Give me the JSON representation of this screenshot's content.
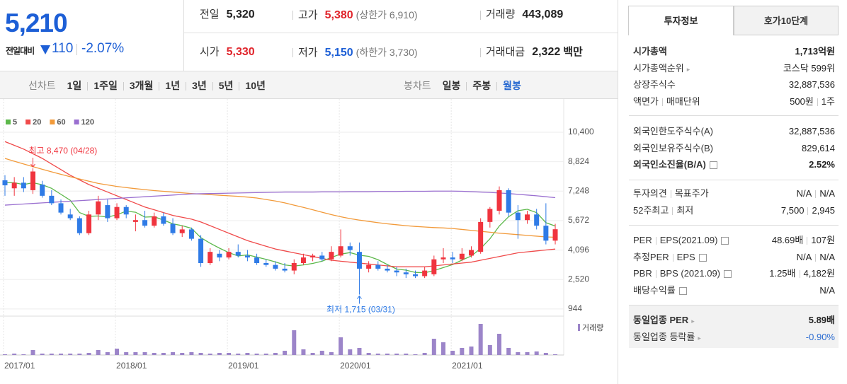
{
  "summary": {
    "price": "5,210",
    "change_label": "전일대비",
    "change": "110",
    "change_rate": "-2.07%"
  },
  "quote": {
    "rows": [
      [
        {
          "label": "전일",
          "value": "5,320"
        },
        {
          "label": "고가",
          "value": "5,380",
          "note": "(상한가 6,910)"
        },
        {
          "label": "거래량",
          "value": "443,089"
        }
      ],
      [
        {
          "label": "시가",
          "value": "5,330"
        },
        {
          "label": "저가",
          "value": "5,150",
          "note": "(하한가 3,730)"
        },
        {
          "label": "거래대금",
          "value": "2,322",
          "unit": "백만"
        }
      ]
    ]
  },
  "toolbar": {
    "line_chart": "선차트",
    "line_periods": [
      "1일",
      "1주일",
      "3개월",
      "1년",
      "3년",
      "5년",
      "10년"
    ],
    "candle_chart": "봉차트",
    "candle_periods": [
      "일봉",
      "주봉",
      "월봉"
    ]
  },
  "chart_data": {
    "type": "candlestick",
    "categories": [
      "2017/01",
      null,
      null,
      null,
      null,
      null,
      null,
      null,
      null,
      null,
      null,
      null,
      "2018/01",
      null,
      null,
      null,
      null,
      null,
      null,
      null,
      null,
      null,
      null,
      null,
      "2019/01",
      null,
      null,
      null,
      null,
      null,
      null,
      null,
      null,
      null,
      null,
      null,
      "2020/01",
      null,
      null,
      null,
      null,
      null,
      null,
      null,
      null,
      null,
      null,
      null,
      "2021/01",
      null,
      null,
      null,
      null,
      null,
      null,
      null,
      null,
      null,
      null,
      null
    ],
    "open": [
      7830,
      7400,
      7700,
      7300,
      7600,
      7000,
      6600,
      6000,
      5800,
      5000,
      6000,
      6500,
      5800,
      6400,
      5600,
      5700,
      5400,
      5900,
      5500,
      5000,
      5200,
      4700,
      3400,
      3900,
      3700,
      4000,
      3800,
      3700,
      3400,
      3300,
      3100,
      3000,
      3400,
      3700,
      3800,
      3600,
      3800,
      4300,
      4000,
      3100,
      3300,
      3100,
      3000,
      2900,
      2800,
      2700,
      2800,
      3600,
      3700,
      3600,
      3800,
      4000,
      5600,
      6200,
      7300,
      6100,
      5700,
      6000,
      5400,
      4600
    ],
    "high": [
      8100,
      8000,
      8000,
      8470,
      7800,
      7300,
      6800,
      6300,
      5900,
      6200,
      7000,
      6800,
      6600,
      6500,
      6000,
      6200,
      6100,
      6100,
      5800,
      5400,
      5300,
      4900,
      4200,
      4100,
      4200,
      4400,
      4100,
      3900,
      3600,
      3500,
      3400,
      3600,
      3900,
      3900,
      4000,
      4300,
      5200,
      4500,
      4500,
      3500,
      3500,
      3300,
      3200,
      3100,
      3000,
      3200,
      3800,
      4200,
      4000,
      4200,
      4300,
      5800,
      6400,
      7500,
      7400,
      6500,
      6200,
      6300,
      6600,
      5500
    ],
    "low": [
      7000,
      7000,
      7200,
      7100,
      6900,
      6500,
      6000,
      5700,
      4900,
      4900,
      5700,
      5600,
      5700,
      5800,
      5100,
      5300,
      5300,
      5400,
      4900,
      4800,
      4600,
      3200,
      3300,
      3500,
      3600,
      3700,
      3500,
      3300,
      3200,
      3000,
      2900,
      2800,
      3300,
      3500,
      3500,
      3500,
      3700,
      3800,
      1715,
      2900,
      3000,
      2900,
      2700,
      2600,
      2600,
      2600,
      2700,
      3400,
      3400,
      3500,
      3700,
      3900,
      5300,
      6000,
      5900,
      4700,
      5500,
      5200,
      4400,
      4400
    ],
    "close": [
      7560,
      7700,
      7400,
      8300,
      7000,
      6600,
      6100,
      5800,
      5000,
      6000,
      6700,
      5800,
      6400,
      6000,
      5700,
      5400,
      5900,
      5500,
      5000,
      5200,
      4700,
      3400,
      4000,
      3700,
      4000,
      3800,
      3700,
      3400,
      3300,
      3100,
      3000,
      3400,
      3700,
      3800,
      3600,
      4000,
      4300,
      4100,
      3100,
      3300,
      3100,
      3000,
      2900,
      2800,
      2700,
      3000,
      3600,
      3700,
      3600,
      3900,
      4100,
      5600,
      6300,
      7300,
      6100,
      5700,
      6000,
      5400,
      4600,
      5210
    ],
    "up_color": "#f0343e",
    "down_color": "#2f7be6",
    "series": [
      {
        "name": "5",
        "color": "#5cb84a",
        "values": [
          7700,
          7700,
          7600,
          7700,
          7590,
          7400,
          7080,
          6760,
          6100,
          5900,
          5920,
          5860,
          5980,
          6180,
          6120,
          5860,
          5880,
          5700,
          5500,
          5400,
          5260,
          4760,
          4460,
          4200,
          3960,
          3780,
          3840,
          3720,
          3600,
          3460,
          3300,
          3240,
          3300,
          3380,
          3500,
          3700,
          3880,
          3960,
          3820,
          3760,
          3580,
          3320,
          3080,
          3020,
          2900,
          2880,
          3000,
          3160,
          3320,
          3560,
          3780,
          4180,
          4700,
          5380,
          5880,
          6200,
          6280,
          6100,
          5560,
          5380
        ]
      },
      {
        "name": "20",
        "color": "#f04a4a",
        "values": [
          9900,
          9700,
          9500,
          9250,
          9000,
          8700,
          8400,
          8100,
          7850,
          7600,
          7400,
          7200,
          7000,
          6800,
          6600,
          6400,
          6250,
          6100,
          5950,
          5850,
          5750,
          5600,
          5400,
          5200,
          5000,
          4800,
          4600,
          4450,
          4300,
          4150,
          4050,
          3950,
          3850,
          3750,
          3650,
          3550,
          3500,
          3450,
          3400,
          3350,
          3300,
          3250,
          3200,
          3200,
          3200,
          3200,
          3250,
          3300,
          3350,
          3400,
          3450,
          3550,
          3650,
          3750,
          3850,
          3950,
          4000,
          4050,
          4100,
          4150
        ]
      },
      {
        "name": "60",
        "color": "#f29a3a",
        "values": [
          9000,
          8850,
          8700,
          8560,
          8420,
          8280,
          8150,
          8020,
          7900,
          7780,
          7660,
          7580,
          7500,
          7440,
          7380,
          7330,
          7280,
          7240,
          7200,
          7160,
          7120,
          7090,
          7060,
          7030,
          7000,
          6970,
          6930,
          6880,
          6800,
          6720,
          6620,
          6500,
          6380,
          6250,
          6120,
          5990,
          5880,
          5780,
          5700,
          5630,
          5560,
          5500,
          5450,
          5400,
          5360,
          5330,
          5300,
          5280,
          5250,
          5200,
          5150,
          5100,
          5050,
          5000,
          4960,
          4920,
          4880,
          4840,
          4800,
          4780
        ]
      },
      {
        "name": "120",
        "color": "#9a6fd0",
        "values": [
          6500,
          6530,
          6560,
          6590,
          6620,
          6650,
          6680,
          6710,
          6740,
          6770,
          6800,
          6830,
          6860,
          6890,
          6920,
          6950,
          6980,
          7010,
          7040,
          7070,
          7100,
          7110,
          7120,
          7130,
          7140,
          7150,
          7160,
          7170,
          7180,
          7190,
          7200,
          7200,
          7200,
          7200,
          7210,
          7210,
          7210,
          7220,
          7220,
          7220,
          7230,
          7230,
          7230,
          7240,
          7240,
          7240,
          7250,
          7250,
          7250,
          7240,
          7220,
          7200,
          7180,
          7150,
          7120,
          7080,
          7040,
          7000,
          6950,
          6900
        ]
      }
    ],
    "ylim": [
      600,
      11800
    ],
    "yticks": [
      {
        "value": 10400,
        "label": "10,400"
      },
      {
        "value": 8824,
        "label": "8,824"
      },
      {
        "value": 7248,
        "label": "7,248"
      },
      {
        "value": 5672,
        "label": "5,672"
      },
      {
        "value": 4096,
        "label": "4,096"
      },
      {
        "value": 2520,
        "label": "2,520"
      },
      944
    ],
    "high_label": "최고 8,470 (04/28)",
    "low_label": "최저 1,715 (03/31)",
    "volume": {
      "name": "거래량",
      "color": "#9c85c9",
      "ylim": [
        0,
        46000000
      ],
      "values": [
        1000000,
        2000000,
        1000000,
        7000000,
        2000000,
        2000000,
        2000000,
        2000000,
        2000000,
        3000000,
        7000000,
        4000000,
        9000000,
        4000000,
        4000000,
        4000000,
        3000000,
        3000000,
        4000000,
        3000000,
        4000000,
        3000000,
        2000000,
        3000000,
        3000000,
        2000000,
        3000000,
        2000000,
        2000000,
        3000000,
        6000000,
        35000000,
        8000000,
        3000000,
        6000000,
        4000000,
        25000000,
        8000000,
        10000000,
        3000000,
        2000000,
        2000000,
        2000000,
        2000000,
        1000000,
        3000000,
        23000000,
        18000000,
        6000000,
        10000000,
        12000000,
        44000000,
        14000000,
        30000000,
        10000000,
        4000000,
        4000000,
        5000000,
        3000000,
        1000000
      ]
    },
    "grid": true
  },
  "info": {
    "tabs": [
      "투자정보",
      "호가10단계"
    ],
    "groups": [
      [
        {
          "label": [
            "시가총액"
          ],
          "value": [
            "1,713억원"
          ]
        },
        {
          "label": [
            "시가총액순위"
          ],
          "value": [
            "코스닥 599위"
          ]
        },
        {
          "label": [
            "상장주식수"
          ],
          "value": [
            "32,887,536"
          ]
        },
        {
          "label": [
            "액면가",
            "매매단위"
          ],
          "value": [
            "500원",
            "1주"
          ]
        }
      ],
      [
        {
          "label": [
            "외국인한도주식수(A)"
          ],
          "value": [
            "32,887,536"
          ]
        },
        {
          "label": [
            "외국인보유주식수(B)"
          ],
          "value": [
            "829,614"
          ]
        },
        {
          "label": [
            "외국인소진율(B/A)"
          ],
          "value": [
            "2.52%"
          ]
        }
      ],
      [
        {
          "label": [
            "투자의견",
            "목표주가"
          ],
          "value": [
            "N/A",
            "N/A"
          ]
        },
        {
          "label": [
            "52주최고",
            "최저"
          ],
          "value": [
            "7,500",
            "2,945"
          ]
        }
      ],
      [
        {
          "label": [
            "PER",
            "EPS(2021.09)"
          ],
          "value": [
            "48.69배",
            "107원"
          ]
        },
        {
          "label": [
            "추정PER",
            "EPS"
          ],
          "value": [
            "N/A",
            "N/A"
          ]
        },
        {
          "label": [
            "PBR",
            "BPS (2021.09)"
          ],
          "value": [
            "1.25배",
            "4,182원"
          ]
        },
        {
          "label": [
            "배당수익률"
          ],
          "value": [
            "N/A"
          ]
        }
      ],
      [
        {
          "label": [
            "동일업종 PER"
          ],
          "value": [
            "5.89배"
          ]
        },
        {
          "label": [
            "동일업종 등락률"
          ],
          "value": [
            "-0.90%"
          ]
        }
      ]
    ]
  }
}
